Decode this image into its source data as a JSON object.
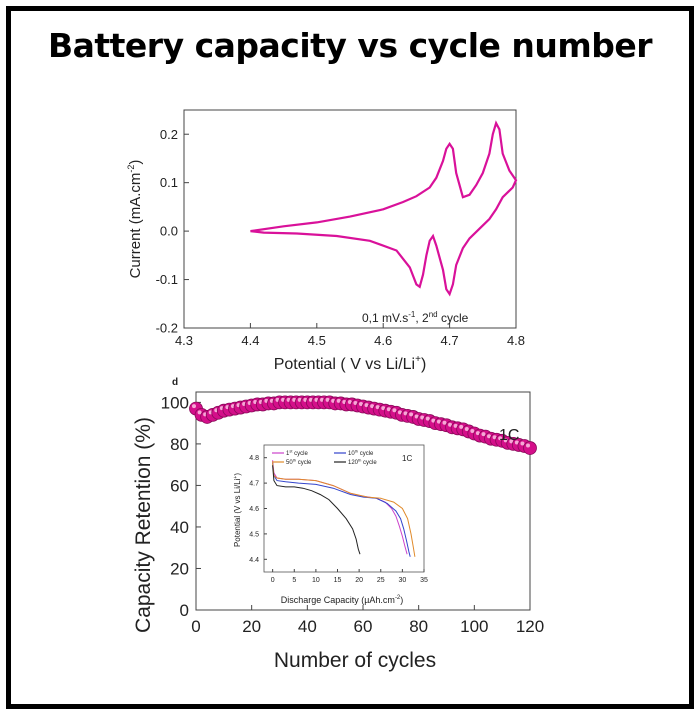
{
  "title": "Battery capacity vs cycle number",
  "colors": {
    "magenta": "#d9119a",
    "retention": "#d40f8a",
    "c1": "#cc44cc",
    "c10": "#3344cc",
    "c50": "#e08a2a",
    "c120": "#222222"
  },
  "chart_data": [
    {
      "type": "line",
      "ylabel": "Current (mA.cm",
      "ylabel_sup": "-2",
      "ylabel_end": ")",
      "xlabel": "Potential ( V vs Li/Li",
      "xlabel_sup": "+",
      "xlabel_end": ")",
      "xlim": [
        4.3,
        4.8
      ],
      "ylim": [
        -0.2,
        0.25
      ],
      "xticks": [
        "4.3",
        "4.4",
        "4.5",
        "4.6",
        "4.7",
        "4.8"
      ],
      "yticks": [
        "-0.2",
        "-0.1",
        "0.0",
        "0.1",
        "0.2"
      ],
      "annotation": "0,1 mV.s",
      "annotation_sup1": "-1",
      "annotation_mid": ", 2",
      "annotation_sup2": "nd",
      "annotation_end": " cycle",
      "series": [
        {
          "x": [
            4.4,
            4.45,
            4.5,
            4.55,
            4.6,
            4.63,
            4.65,
            4.67,
            4.68,
            4.69,
            4.695,
            4.7,
            4.705,
            4.71,
            4.72,
            4.73,
            4.74,
            4.75,
            4.76,
            4.765,
            4.77,
            4.775,
            4.78,
            4.79,
            4.8,
            4.795,
            4.78,
            4.77,
            4.76,
            4.745,
            4.73,
            4.72,
            4.71,
            4.705,
            4.7,
            4.695,
            4.69,
            4.68,
            4.675,
            4.67,
            4.665,
            4.66,
            4.655,
            4.65,
            4.64,
            4.62,
            4.58,
            4.53,
            4.47,
            4.42,
            4.4
          ],
          "y": [
            0.0,
            0.01,
            0.018,
            0.03,
            0.045,
            0.06,
            0.072,
            0.09,
            0.11,
            0.145,
            0.17,
            0.18,
            0.17,
            0.12,
            0.07,
            0.075,
            0.095,
            0.12,
            0.16,
            0.2,
            0.223,
            0.21,
            0.16,
            0.125,
            0.105,
            0.09,
            0.07,
            0.045,
            0.025,
            0.005,
            -0.015,
            -0.035,
            -0.07,
            -0.11,
            -0.13,
            -0.12,
            -0.08,
            -0.03,
            -0.01,
            -0.02,
            -0.05,
            -0.09,
            -0.115,
            -0.11,
            -0.075,
            -0.04,
            -0.02,
            -0.01,
            -0.005,
            -0.003,
            0.0
          ]
        }
      ]
    },
    {
      "type": "scatter",
      "panel_label": "d",
      "ylabel": "Capacity Retention (%)",
      "xlabel": "Number of cycles",
      "xlim": [
        0,
        120
      ],
      "ylim": [
        0,
        105
      ],
      "xticks": [
        "0",
        "20",
        "40",
        "60",
        "80",
        "100",
        "120"
      ],
      "yticks": [
        "0",
        "20",
        "40",
        "60",
        "80",
        "100"
      ],
      "annotation": "1C",
      "x": [
        0,
        2,
        4,
        6,
        8,
        10,
        12,
        14,
        16,
        18,
        20,
        22,
        24,
        26,
        28,
        30,
        32,
        34,
        36,
        38,
        40,
        42,
        44,
        46,
        48,
        50,
        52,
        54,
        56,
        58,
        60,
        62,
        64,
        66,
        68,
        70,
        72,
        74,
        76,
        78,
        80,
        82,
        84,
        86,
        88,
        90,
        92,
        94,
        96,
        98,
        100,
        102,
        104,
        106,
        108,
        110,
        112,
        114,
        116,
        118,
        120
      ],
      "y": [
        97,
        94,
        93,
        94,
        95,
        96,
        96.5,
        97,
        97.5,
        98,
        98.5,
        99,
        99,
        99.5,
        99.5,
        100,
        100,
        100,
        100,
        100,
        100,
        100,
        100,
        100,
        100,
        99.5,
        99.5,
        99,
        99,
        98.5,
        98,
        97.5,
        97,
        96.5,
        96,
        95.5,
        95,
        94,
        93.5,
        93,
        92,
        91.5,
        91,
        90,
        89.5,
        89,
        88,
        87.5,
        87,
        86,
        85,
        84,
        83.5,
        82.5,
        82,
        81.5,
        80.5,
        80,
        79.5,
        79,
        78
      ]
    },
    {
      "type": "line",
      "ylabel": "Potential (V vs Li/Li",
      "ylabel_sup": "+",
      "ylabel_end": ")",
      "xlabel": "Discharge Capacity (µAh.cm",
      "xlabel_sup": "-2",
      "xlabel_end": ")",
      "xlim": [
        -2,
        35
      ],
      "ylim": [
        4.35,
        4.85
      ],
      "xticks": [
        "0",
        "5",
        "10",
        "15",
        "20",
        "25",
        "30",
        "35"
      ],
      "yticks": [
        "4.4",
        "4.5",
        "4.6",
        "4.7",
        "4.8"
      ],
      "annotation": "1C",
      "legend_position": "top-left",
      "series": [
        {
          "name": "1",
          "name_sup": "st",
          "name_end": " cycle",
          "x": [
            0,
            0.3,
            1,
            3,
            6,
            10,
            14,
            18,
            21,
            24,
            26,
            27.5,
            28.5,
            29.3,
            30,
            30.6,
            31.1
          ],
          "y": [
            4.79,
            4.74,
            4.72,
            4.715,
            4.715,
            4.71,
            4.69,
            4.66,
            4.648,
            4.64,
            4.625,
            4.6,
            4.57,
            4.53,
            4.49,
            4.45,
            4.42
          ]
        },
        {
          "name": "10",
          "name_sup": "th",
          "name_end": " cycle",
          "x": [
            0,
            0.3,
            1,
            3,
            6,
            10,
            14,
            18,
            21,
            24,
            26.5,
            28.5,
            29.6,
            30.3,
            31,
            31.5,
            31.8
          ],
          "y": [
            4.78,
            4.73,
            4.71,
            4.705,
            4.7,
            4.695,
            4.68,
            4.655,
            4.645,
            4.64,
            4.62,
            4.59,
            4.56,
            4.52,
            4.47,
            4.43,
            4.41
          ]
        },
        {
          "name": "50",
          "name_sup": "th",
          "name_end": " cycle",
          "x": [
            0,
            0.3,
            1,
            3,
            6,
            10,
            14,
            18,
            22,
            25,
            28,
            30,
            31.2,
            32,
            32.5,
            32.9
          ],
          "y": [
            4.78,
            4.73,
            4.72,
            4.715,
            4.715,
            4.71,
            4.69,
            4.66,
            4.645,
            4.64,
            4.625,
            4.6,
            4.56,
            4.5,
            4.45,
            4.41
          ]
        },
        {
          "name": "120",
          "name_sup": "th",
          "name_end": " cycle",
          "x": [
            0,
            0.3,
            1,
            3,
            5,
            7,
            9,
            11,
            13,
            15,
            17,
            18.5,
            19.3,
            19.8,
            20.2
          ],
          "y": [
            4.77,
            4.71,
            4.69,
            4.685,
            4.685,
            4.68,
            4.67,
            4.655,
            4.635,
            4.6,
            4.56,
            4.52,
            4.48,
            4.44,
            4.42
          ]
        }
      ]
    }
  ]
}
